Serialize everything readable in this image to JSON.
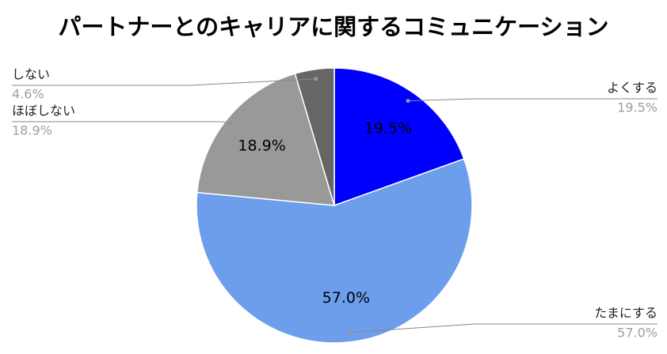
{
  "chart_data": {
    "type": "pie",
    "title": "パートナーとのキャリアに関するコミュニケーション",
    "categories": [
      "よくする",
      "たまにする",
      "ほぼしない",
      "しない"
    ],
    "values": [
      19.5,
      57.0,
      18.9,
      4.6
    ],
    "value_labels": [
      "19.5%",
      "57.0%",
      "18.9%",
      "4.6%"
    ],
    "colors": [
      "#0000ff",
      "#6d9eeb",
      "#999999",
      "#666666"
    ]
  }
}
